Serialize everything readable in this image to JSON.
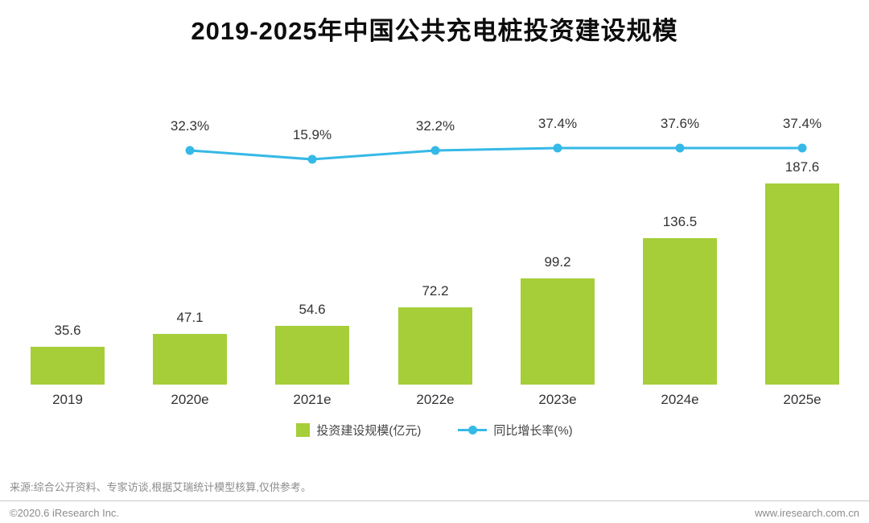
{
  "title": "2019-2025年中国公共充电桩投资建设规模",
  "colors": {
    "bar": "#a5ce39",
    "line": "#35b9e6"
  },
  "chart_data": {
    "type": "bar",
    "title": "2019-2025年中国公共充电桩投资建设规模",
    "categories": [
      "2019",
      "2020e",
      "2021e",
      "2022e",
      "2023e",
      "2024e",
      "2025e"
    ],
    "series": [
      {
        "name": "投资建设规模(亿元)",
        "type": "bar",
        "color": "#a5ce39",
        "values": [
          35.6,
          47.1,
          54.6,
          72.2,
          99.2,
          136.5,
          187.6
        ],
        "value_labels": [
          "35.6",
          "47.1",
          "54.6",
          "72.2",
          "99.2",
          "136.5",
          "187.6"
        ]
      },
      {
        "name": "同比增长率(%)",
        "type": "line",
        "color": "#35b9e6",
        "values": [
          null,
          32.3,
          15.9,
          32.2,
          37.4,
          37.6,
          37.4
        ],
        "value_labels": [
          "",
          "32.3%",
          "15.9%",
          "32.2%",
          "37.4%",
          "37.6%",
          "37.4%"
        ]
      }
    ],
    "legend_position": "bottom",
    "grid": false,
    "y_axis_visible": false
  },
  "legend": {
    "bar_label": "投资建设规模(亿元)",
    "line_label": "同比增长率(%)"
  },
  "footer": {
    "source": "来源:综合公开资料、专家访谈,根据艾瑞统计模型核算,仅供参考。",
    "copyright": "©2020.6 iResearch Inc.",
    "website": "www.iresearch.com.cn"
  }
}
